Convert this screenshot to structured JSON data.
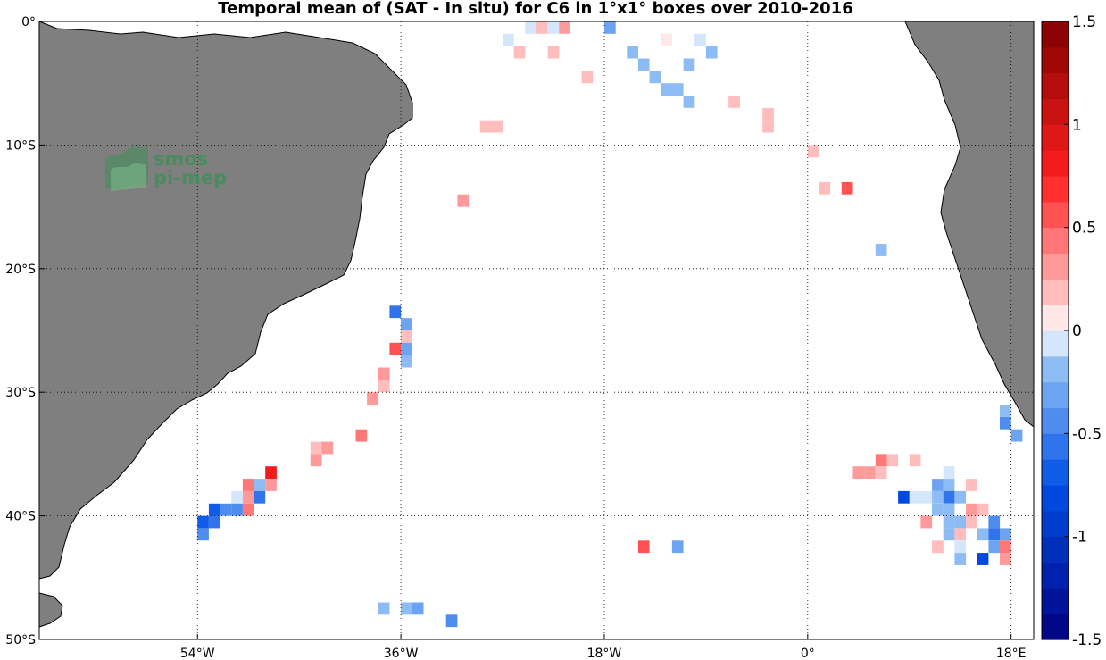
{
  "chart_data": {
    "type": "heatmap",
    "title": "Temporal mean of (SAT - In situ) for C6 in 1°x1° boxes over 2010-2016",
    "xlim": [
      -68,
      20
    ],
    "ylim": [
      -50,
      0
    ],
    "x_ticks": [
      {
        "value": -54,
        "label": "54°W"
      },
      {
        "value": -36,
        "label": "36°W"
      },
      {
        "value": -18,
        "label": "18°W"
      },
      {
        "value": 0,
        "label": "0°"
      },
      {
        "value": 18,
        "label": "18°E"
      }
    ],
    "y_ticks": [
      {
        "value": 0,
        "label": "0°"
      },
      {
        "value": -10,
        "label": "10°S"
      },
      {
        "value": -20,
        "label": "20°S"
      },
      {
        "value": -30,
        "label": "30°S"
      },
      {
        "value": -40,
        "label": "40°S"
      },
      {
        "value": -50,
        "label": "50°S"
      }
    ],
    "grid": true,
    "colorbar": {
      "range": [
        -1.5,
        1.5
      ],
      "levels": 24,
      "ticks": [
        {
          "value": 1.5,
          "label": "1.5"
        },
        {
          "value": 1,
          "label": "1"
        },
        {
          "value": 0.5,
          "label": "0.5"
        },
        {
          "value": 0,
          "label": "0"
        },
        {
          "value": -0.5,
          "label": "-0.5"
        },
        {
          "value": -1,
          "label": "-1"
        },
        {
          "value": -1.5,
          "label": "-1.5"
        }
      ]
    },
    "cells": [
      {
        "lon": -24.5,
        "lat": -0.5,
        "v": -0.1
      },
      {
        "lon": -23.5,
        "lat": -0.5,
        "v": 0.15
      },
      {
        "lon": -22.5,
        "lat": -0.5,
        "v": -0.1
      },
      {
        "lon": -21.5,
        "lat": -0.5,
        "v": 0.3
      },
      {
        "lon": -17.5,
        "lat": -0.5,
        "v": -0.3
      },
      {
        "lon": -26.5,
        "lat": -1.5,
        "v": -0.1
      },
      {
        "lon": -12.5,
        "lat": -1.5,
        "v": 0.1
      },
      {
        "lon": -9.5,
        "lat": -1.5,
        "v": -0.1
      },
      {
        "lon": -25.5,
        "lat": -2.5,
        "v": 0.15
      },
      {
        "lon": -22.5,
        "lat": -2.5,
        "v": 0.15
      },
      {
        "lon": -15.5,
        "lat": -2.5,
        "v": -0.15
      },
      {
        "lon": -8.5,
        "lat": -2.5,
        "v": -0.15
      },
      {
        "lon": -14.5,
        "lat": -3.5,
        "v": -0.25
      },
      {
        "lon": -10.5,
        "lat": -3.5,
        "v": -0.25
      },
      {
        "lon": -19.5,
        "lat": -4.5,
        "v": 0.2
      },
      {
        "lon": -13.5,
        "lat": -4.5,
        "v": -0.25
      },
      {
        "lon": -12.5,
        "lat": -5.5,
        "v": -0.2
      },
      {
        "lon": -11.5,
        "lat": -5.5,
        "v": -0.2
      },
      {
        "lon": -10.5,
        "lat": -6.5,
        "v": -0.25
      },
      {
        "lon": -6.5,
        "lat": -6.5,
        "v": 0.15
      },
      {
        "lon": -3.5,
        "lat": -7.5,
        "v": 0.15
      },
      {
        "lon": -28.5,
        "lat": -8.5,
        "v": 0.2
      },
      {
        "lon": -27.5,
        "lat": -8.5,
        "v": 0.2
      },
      {
        "lon": -3.5,
        "lat": -8.5,
        "v": 0.15
      },
      {
        "lon": 0.5,
        "lat": -10.5,
        "v": 0.2
      },
      {
        "lon": 1.5,
        "lat": -13.5,
        "v": 0.2
      },
      {
        "lon": 3.5,
        "lat": -13.5,
        "v": 0.5
      },
      {
        "lon": -30.5,
        "lat": -14.5,
        "v": 0.3
      },
      {
        "lon": 6.5,
        "lat": -18.5,
        "v": -0.15
      },
      {
        "lon": -36.5,
        "lat": -23.5,
        "v": -0.55
      },
      {
        "lon": -35.5,
        "lat": -24.5,
        "v": -0.3
      },
      {
        "lon": -35.5,
        "lat": -25.5,
        "v": 0.2
      },
      {
        "lon": -36.5,
        "lat": -26.5,
        "v": 0.6
      },
      {
        "lon": -35.5,
        "lat": -26.5,
        "v": -0.3
      },
      {
        "lon": -35.5,
        "lat": -27.5,
        "v": -0.15
      },
      {
        "lon": -37.5,
        "lat": -28.5,
        "v": 0.25
      },
      {
        "lon": -37.5,
        "lat": -29.5,
        "v": 0.2
      },
      {
        "lon": -38.5,
        "lat": -30.5,
        "v": 0.3
      },
      {
        "lon": -39.5,
        "lat": -33.5,
        "v": 0.4
      },
      {
        "lon": -43.5,
        "lat": -34.5,
        "v": 0.2
      },
      {
        "lon": -42.5,
        "lat": -34.5,
        "v": 0.25
      },
      {
        "lon": -43.5,
        "lat": -35.5,
        "v": 0.25
      },
      {
        "lon": -47.5,
        "lat": -36.5,
        "v": 0.8
      },
      {
        "lon": -49.5,
        "lat": -37.5,
        "v": 0.4
      },
      {
        "lon": -48.5,
        "lat": -37.5,
        "v": -0.2
      },
      {
        "lon": -47.5,
        "lat": -37.5,
        "v": 0.25
      },
      {
        "lon": -50.5,
        "lat": -38.5,
        "v": -0.1
      },
      {
        "lon": -49.5,
        "lat": -38.5,
        "v": 0.3
      },
      {
        "lon": -48.5,
        "lat": -38.5,
        "v": -0.6
      },
      {
        "lon": -52.5,
        "lat": -39.5,
        "v": -0.7
      },
      {
        "lon": -51.5,
        "lat": -39.5,
        "v": -0.5
      },
      {
        "lon": -50.5,
        "lat": -39.5,
        "v": -0.45
      },
      {
        "lon": -49.5,
        "lat": -39.5,
        "v": 0.4
      },
      {
        "lon": -53.5,
        "lat": -40.5,
        "v": -0.75
      },
      {
        "lon": -52.5,
        "lat": -40.5,
        "v": -0.55
      },
      {
        "lon": -53.5,
        "lat": -41.5,
        "v": -0.5
      },
      {
        "lon": -37.5,
        "lat": -47.5,
        "v": -0.2
      },
      {
        "lon": -35.5,
        "lat": -47.5,
        "v": -0.2
      },
      {
        "lon": -34.5,
        "lat": -47.5,
        "v": -0.3
      },
      {
        "lon": -31.5,
        "lat": -48.5,
        "v": -0.45
      },
      {
        "lon": -14.5,
        "lat": -42.5,
        "v": 0.5
      },
      {
        "lon": -11.5,
        "lat": -42.5,
        "v": -0.3
      },
      {
        "lon": 6.5,
        "lat": -35.5,
        "v": 0.4
      },
      {
        "lon": 7.5,
        "lat": -35.5,
        "v": 0.15
      },
      {
        "lon": 9.5,
        "lat": -35.5,
        "v": 0.15
      },
      {
        "lon": 4.5,
        "lat": -36.5,
        "v": 0.3
      },
      {
        "lon": 5.5,
        "lat": -36.5,
        "v": 0.3
      },
      {
        "lon": 6.5,
        "lat": -36.5,
        "v": 0.2
      },
      {
        "lon": 12.5,
        "lat": -36.5,
        "v": -0.1
      },
      {
        "lon": 11.5,
        "lat": -37.5,
        "v": -0.3
      },
      {
        "lon": 12.5,
        "lat": -37.5,
        "v": -0.2
      },
      {
        "lon": 14.5,
        "lat": -37.5,
        "v": 0.15
      },
      {
        "lon": 8.5,
        "lat": -38.5,
        "v": -0.8
      },
      {
        "lon": 9.5,
        "lat": -38.5,
        "v": -0.1
      },
      {
        "lon": 10.5,
        "lat": -38.5,
        "v": -0.1
      },
      {
        "lon": 11.5,
        "lat": -38.5,
        "v": -0.2
      },
      {
        "lon": 12.5,
        "lat": -38.5,
        "v": -0.55
      },
      {
        "lon": 13.5,
        "lat": -38.5,
        "v": -0.2
      },
      {
        "lon": 11.5,
        "lat": -39.5,
        "v": -0.15
      },
      {
        "lon": 12.5,
        "lat": -39.5,
        "v": -0.25
      },
      {
        "lon": 14.5,
        "lat": -39.5,
        "v": 0.3
      },
      {
        "lon": 15.5,
        "lat": -39.5,
        "v": 0.2
      },
      {
        "lon": 10.5,
        "lat": -40.5,
        "v": 0.3
      },
      {
        "lon": 12.5,
        "lat": -40.5,
        "v": -0.15
      },
      {
        "lon": 13.5,
        "lat": -40.5,
        "v": -0.2
      },
      {
        "lon": 14.5,
        "lat": -40.5,
        "v": 0.15
      },
      {
        "lon": 16.5,
        "lat": -40.5,
        "v": -0.5
      },
      {
        "lon": 12.5,
        "lat": -41.5,
        "v": -0.15
      },
      {
        "lon": 13.5,
        "lat": -41.5,
        "v": 0.15
      },
      {
        "lon": 15.5,
        "lat": -41.5,
        "v": -0.15
      },
      {
        "lon": 16.5,
        "lat": -41.5,
        "v": -0.55
      },
      {
        "lon": 17.5,
        "lat": -41.5,
        "v": -0.3
      },
      {
        "lon": 11.5,
        "lat": -42.5,
        "v": 0.2
      },
      {
        "lon": 13.5,
        "lat": -42.5,
        "v": -0.1
      },
      {
        "lon": 16.5,
        "lat": -42.5,
        "v": -0.3
      },
      {
        "lon": 17.5,
        "lat": -42.5,
        "v": 0.4
      },
      {
        "lon": 13.5,
        "lat": -43.5,
        "v": -0.2
      },
      {
        "lon": 15.5,
        "lat": -43.5,
        "v": -0.8
      },
      {
        "lon": 17.5,
        "lat": -43.5,
        "v": 0.25
      },
      {
        "lon": 17.5,
        "lat": -31.5,
        "v": -0.25
      },
      {
        "lon": 17.5,
        "lat": -32.5,
        "v": -0.5
      },
      {
        "lon": 18.5,
        "lat": -33.5,
        "v": -0.3
      }
    ]
  },
  "watermark": {
    "line1": "smos",
    "line2": "pi-mep"
  },
  "colors": {
    "land": "#7f7f7f",
    "coast": "#000000",
    "grid": "#000000",
    "cb_max": "#800000",
    "cb_min": "#000080"
  }
}
